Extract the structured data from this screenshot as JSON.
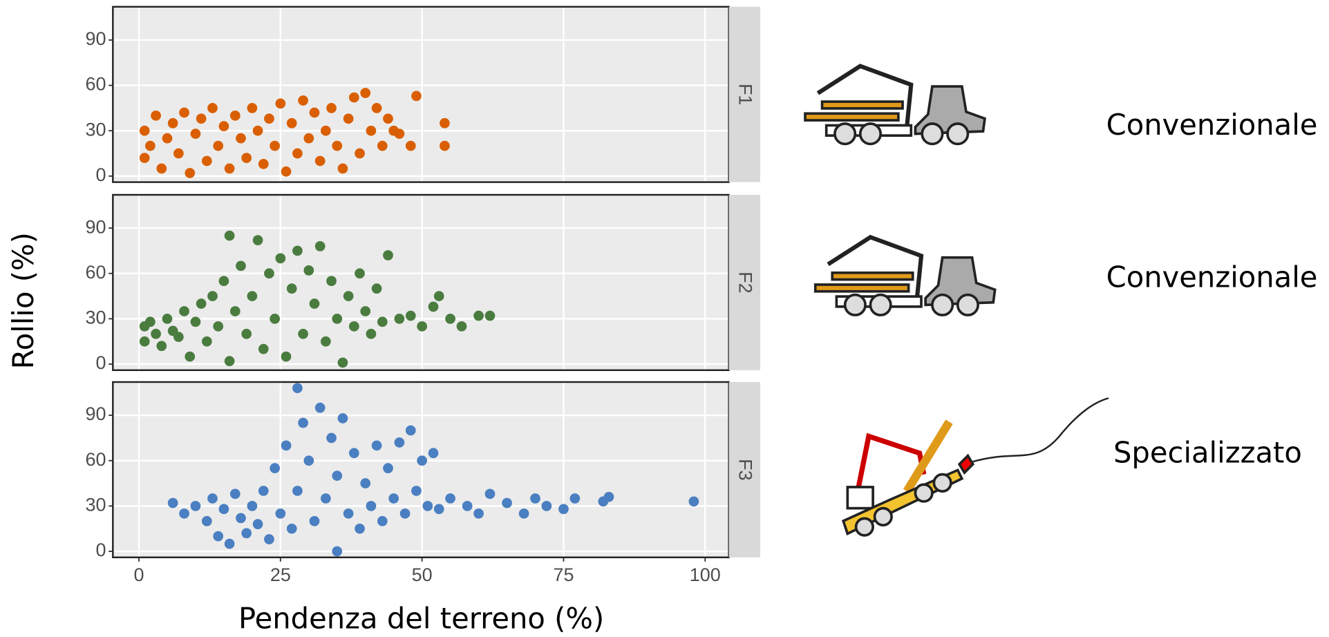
{
  "chart_data": [
    {
      "type": "scatter",
      "title": "F1",
      "color": "#d95f02",
      "xlim": [
        -4.6,
        104.2
      ],
      "ylim": [
        -4,
        112
      ],
      "xticks": [
        0,
        25,
        50,
        75,
        100
      ],
      "yticks": [
        0,
        30,
        60,
        90
      ],
      "x": [
        1,
        1,
        2,
        3,
        4,
        5,
        6,
        7,
        8,
        9,
        10,
        11,
        12,
        13,
        14,
        15,
        16,
        17,
        18,
        19,
        20,
        21,
        22,
        23,
        24,
        25,
        26,
        27,
        28,
        29,
        30,
        31,
        32,
        33,
        34,
        35,
        36,
        37,
        38,
        39,
        40,
        41,
        42,
        43,
        44,
        45,
        46,
        48,
        49,
        54,
        54
      ],
      "y": [
        30,
        12,
        20,
        40,
        5,
        25,
        35,
        15,
        42,
        2,
        28,
        38,
        10,
        45,
        20,
        33,
        5,
        40,
        25,
        12,
        45,
        30,
        8,
        38,
        20,
        48,
        3,
        35,
        15,
        50,
        25,
        42,
        10,
        30,
        45,
        20,
        5,
        38,
        52,
        15,
        55,
        30,
        45,
        20,
        38,
        30,
        28,
        20,
        53,
        20,
        35
      ]
    },
    {
      "type": "scatter",
      "title": "F2",
      "color": "#4a7c3f",
      "xlim": [
        -4.6,
        104.2
      ],
      "ylim": [
        -4,
        112
      ],
      "xticks": [
        0,
        25,
        50,
        75,
        100
      ],
      "yticks": [
        0,
        30,
        60,
        90
      ],
      "x": [
        1,
        1,
        2,
        3,
        4,
        5,
        6,
        7,
        8,
        9,
        10,
        11,
        12,
        13,
        14,
        15,
        16,
        16,
        17,
        18,
        19,
        20,
        21,
        22,
        23,
        24,
        25,
        26,
        27,
        28,
        29,
        30,
        31,
        32,
        33,
        34,
        35,
        36,
        37,
        38,
        39,
        40,
        41,
        42,
        43,
        44,
        46,
        48,
        50,
        52,
        53,
        55,
        57,
        60,
        62
      ],
      "y": [
        25,
        15,
        28,
        20,
        12,
        30,
        22,
        18,
        35,
        5,
        28,
        40,
        15,
        45,
        25,
        55,
        85,
        2,
        35,
        65,
        20,
        45,
        82,
        10,
        60,
        30,
        70,
        5,
        50,
        75,
        20,
        62,
        40,
        78,
        15,
        55,
        30,
        1,
        45,
        25,
        60,
        35,
        20,
        50,
        28,
        72,
        30,
        32,
        25,
        38,
        45,
        30,
        25,
        32,
        32
      ]
    },
    {
      "type": "scatter",
      "title": "F3",
      "color": "#4a7fc1",
      "xlim": [
        -4.6,
        104.2
      ],
      "ylim": [
        -4,
        112
      ],
      "xticks": [
        0,
        25,
        50,
        75,
        100
      ],
      "yticks": [
        0,
        30,
        60,
        90
      ],
      "x": [
        6,
        8,
        10,
        12,
        13,
        14,
        15,
        16,
        17,
        18,
        19,
        20,
        21,
        22,
        23,
        24,
        25,
        26,
        27,
        28,
        28,
        29,
        30,
        31,
        32,
        33,
        34,
        35,
        35,
        36,
        37,
        38,
        39,
        40,
        41,
        42,
        43,
        44,
        45,
        46,
        47,
        48,
        49,
        50,
        51,
        52,
        53,
        55,
        58,
        60,
        62,
        65,
        68,
        70,
        72,
        75,
        77,
        82,
        83,
        98
      ],
      "y": [
        32,
        25,
        30,
        20,
        35,
        10,
        28,
        5,
        38,
        22,
        12,
        30,
        18,
        40,
        8,
        55,
        25,
        70,
        15,
        108,
        40,
        85,
        60,
        20,
        95,
        35,
        75,
        0,
        50,
        88,
        25,
        65,
        15,
        45,
        30,
        70,
        20,
        55,
        35,
        72,
        25,
        80,
        40,
        60,
        30,
        65,
        28,
        35,
        30,
        25,
        38,
        32,
        25,
        35,
        30,
        28,
        35,
        33,
        36,
        33
      ]
    }
  ],
  "axis_labels": {
    "x": "Pendenza del terreno (%)",
    "y": "Rollio (%)"
  },
  "machines": [
    "Convenzionale",
    "Convenzionale",
    "Specializzato"
  ]
}
